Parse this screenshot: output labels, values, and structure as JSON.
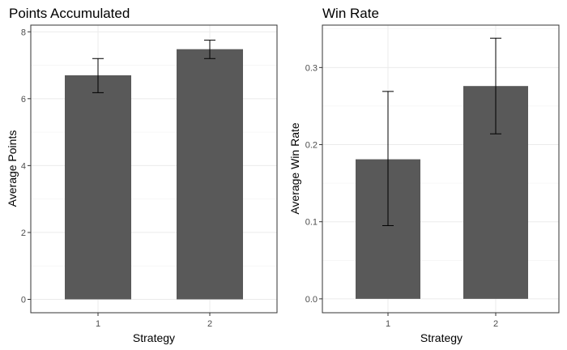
{
  "chart_data": [
    {
      "type": "bar",
      "title": "Points Accumulated",
      "xlabel": "Strategy",
      "ylabel": "Average Points",
      "categories": [
        "1",
        "2"
      ],
      "values": [
        6.7,
        7.48
      ],
      "error_low": [
        6.18,
        7.2
      ],
      "error_high": [
        7.2,
        7.75
      ],
      "ylim": [
        -0.4,
        8.2
      ],
      "yticks": [
        0,
        2,
        4,
        6,
        8
      ],
      "grid": true,
      "bar_color": "#595959"
    },
    {
      "type": "bar",
      "title": "Win Rate",
      "xlabel": "Strategy",
      "ylabel": "Average Win Rate",
      "categories": [
        "1",
        "2"
      ],
      "values": [
        0.181,
        0.276
      ],
      "error_low": [
        0.095,
        0.214
      ],
      "error_high": [
        0.269,
        0.338
      ],
      "ylim": [
        -0.018,
        0.355
      ],
      "yticks": [
        "0.0",
        "0.1",
        "0.2",
        "0.3"
      ],
      "grid": true,
      "bar_color": "#595959"
    }
  ]
}
